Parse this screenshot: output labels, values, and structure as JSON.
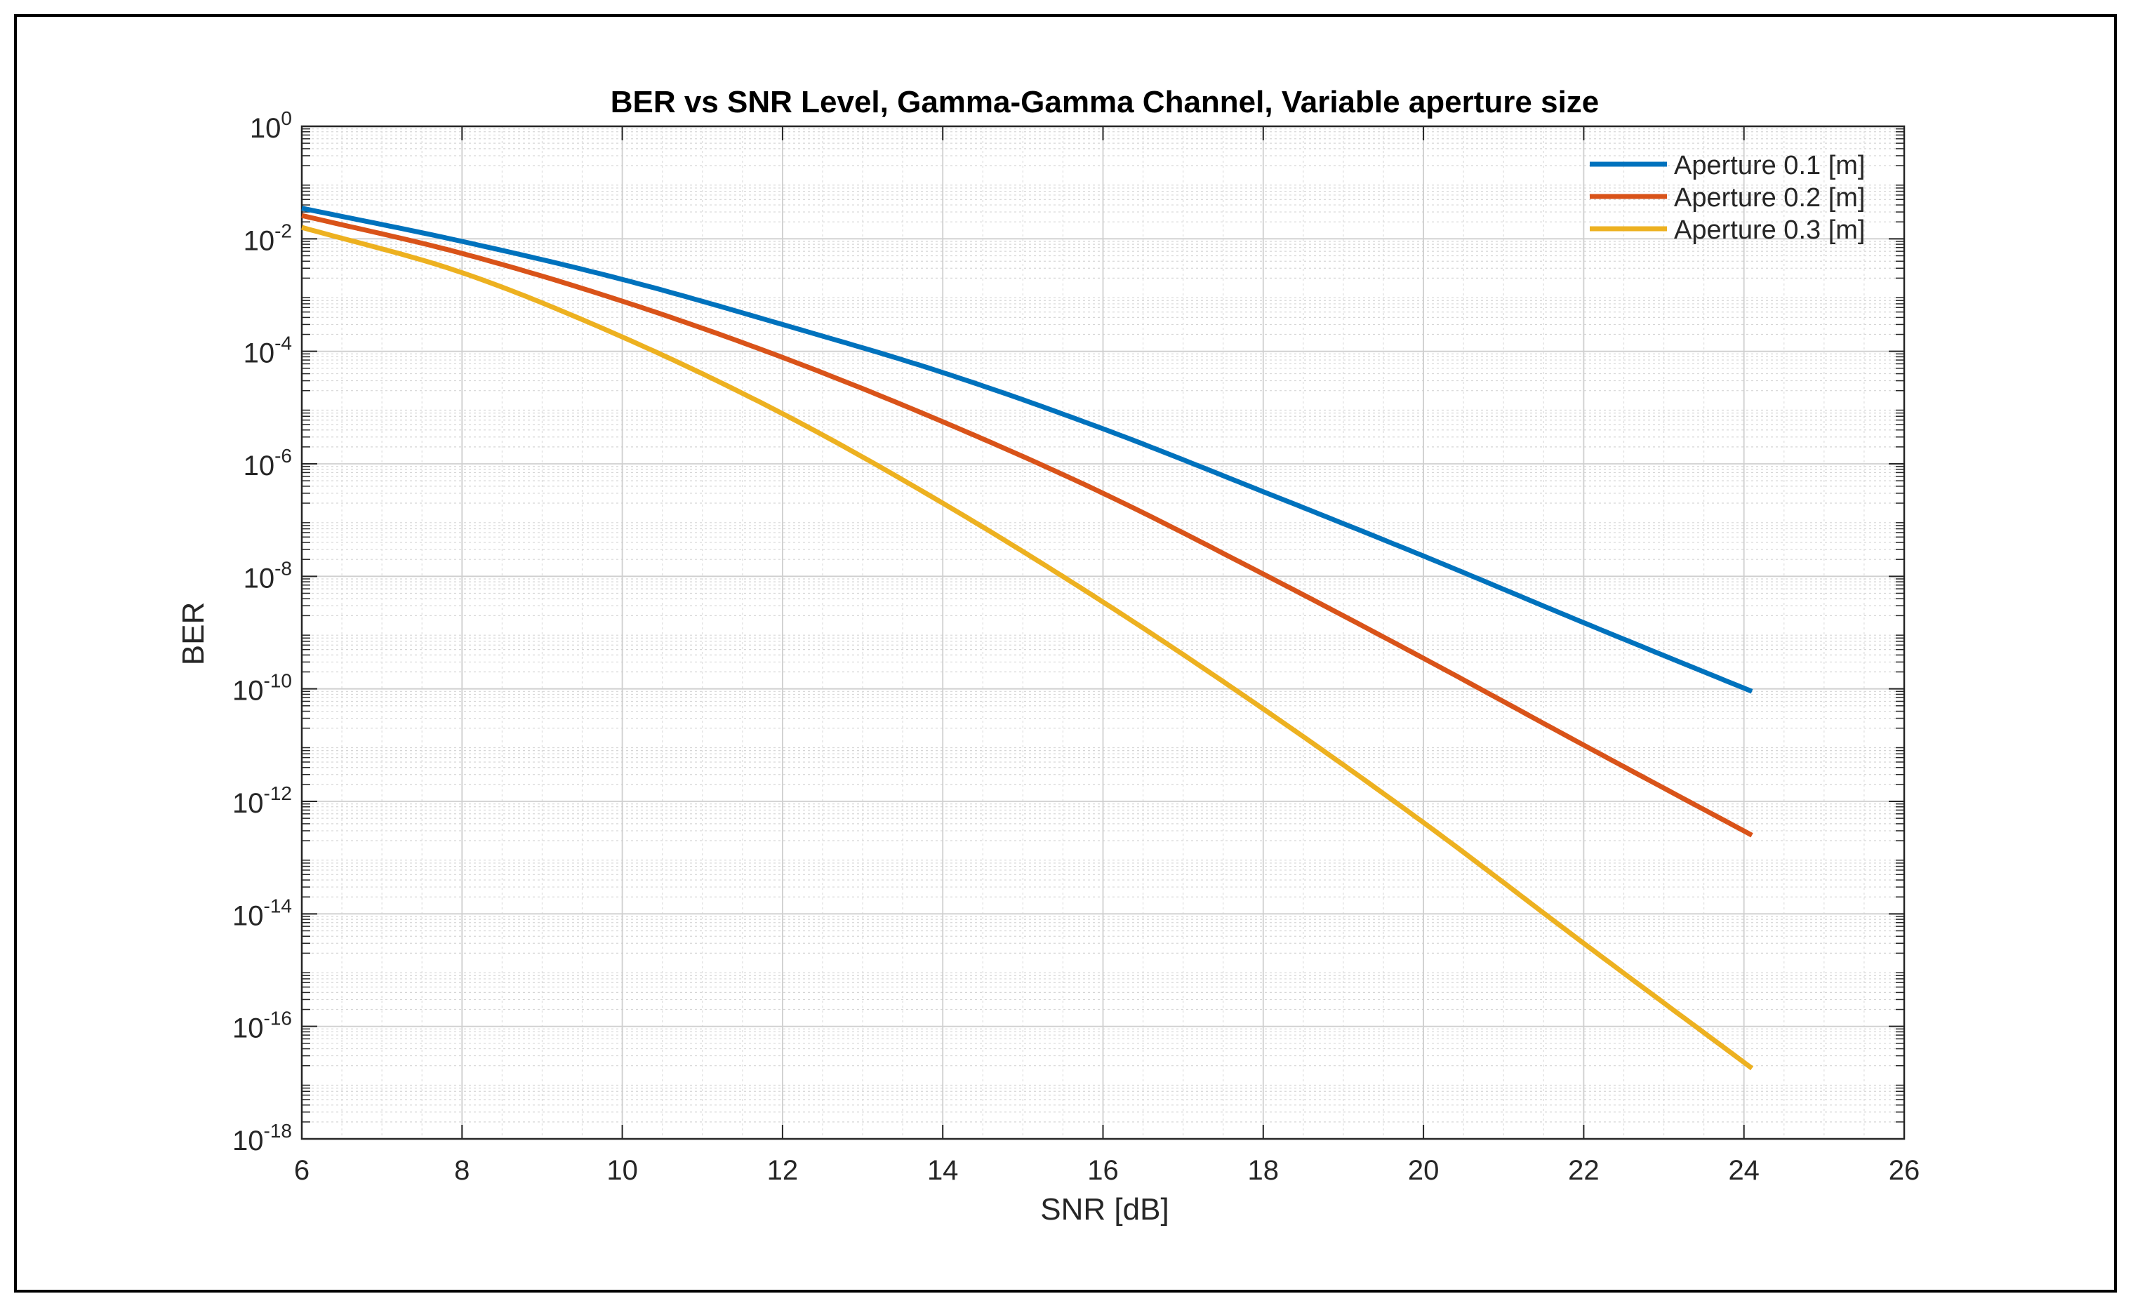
{
  "chart_data": {
    "type": "line",
    "title": "BER vs SNR Level, Gamma-Gamma Channel, Variable aperture size",
    "xlabel": "SNR [dB]",
    "ylabel": "BER",
    "xlim": [
      6,
      26
    ],
    "ylim": [
      1e-18,
      1
    ],
    "yscale": "log",
    "grid": true,
    "minor_grid": true,
    "legend_position": "top-right",
    "x_ticks": [
      "6",
      "8",
      "10",
      "12",
      "14",
      "16",
      "18",
      "20",
      "22",
      "24",
      "26"
    ],
    "y_ticks": [
      {
        "base": "10",
        "exp": "0"
      },
      {
        "base": "10",
        "exp": "-2"
      },
      {
        "base": "10",
        "exp": "-4"
      },
      {
        "base": "10",
        "exp": "-6"
      },
      {
        "base": "10",
        "exp": "-8"
      },
      {
        "base": "10",
        "exp": "-10"
      },
      {
        "base": "10",
        "exp": "-12"
      },
      {
        "base": "10",
        "exp": "-14"
      },
      {
        "base": "10",
        "exp": "-16"
      },
      {
        "base": "10",
        "exp": "-18"
      }
    ],
    "x": [
      6,
      8,
      10,
      12,
      14,
      16,
      18,
      20,
      22,
      24.1
    ],
    "series": [
      {
        "name": "Aperture 0.1 [m]",
        "color": "#0072BD",
        "values": [
          0.035,
          0.009,
          0.0019,
          0.0003,
          4.2e-05,
          4.2e-06,
          3.2e-07,
          2.3e-08,
          1.5e-09,
          9e-11
        ]
      },
      {
        "name": "Aperture 0.2 [m]",
        "color": "#D95319",
        "values": [
          0.026,
          0.0055,
          0.00078,
          7.8e-05,
          5.6e-06,
          3e-07,
          1.1e-08,
          3.5e-10,
          1e-11,
          2.5e-13
        ]
      },
      {
        "name": "Aperture 0.3 [m]",
        "color": "#EDB120",
        "values": [
          0.016,
          0.0025,
          0.00018,
          7.8e-06,
          2e-07,
          3.5e-09,
          4.4e-11,
          4.2e-13,
          3e-15,
          1.8e-17
        ]
      }
    ]
  }
}
